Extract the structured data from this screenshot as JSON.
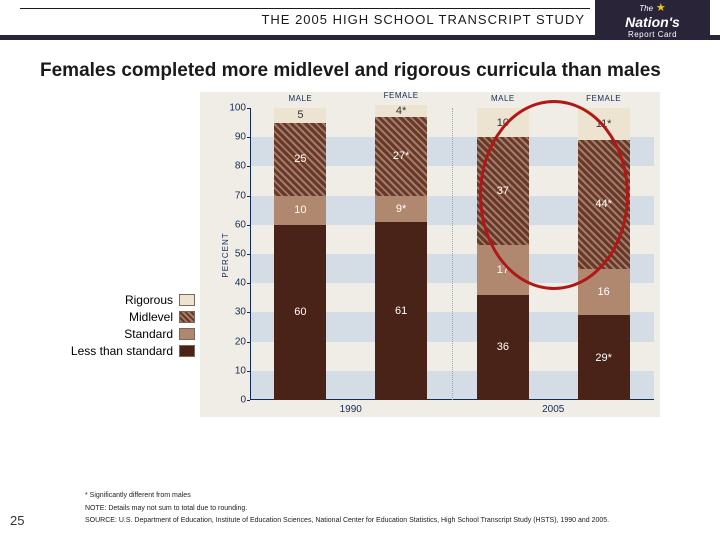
{
  "header": {
    "study_title": "THE 2005 HIGH SCHOOL TRANSCRIPT STUDY"
  },
  "logo": {
    "line1": "The",
    "line2": "Nation's",
    "line3": "Report Card"
  },
  "title": "Females completed more midlevel and rigorous curricula than males",
  "chart": {
    "type": "stacked-bar",
    "y": {
      "label": "PERCENT",
      "min": 0,
      "max": 100,
      "step": 10
    },
    "series_order": [
      "less_than_standard",
      "standard",
      "midlevel",
      "rigorous"
    ],
    "colors": {
      "less_than_standard": "#4a2318",
      "standard": "#b08870",
      "midlevel": "#6a3824",
      "rigorous": "#ece3d0",
      "text_on_dark": "#ffffff",
      "text_on_light": "#333333",
      "stripe": "#d4dde6",
      "panel_bg": "#f0ede6",
      "axis": "#132c57",
      "highlight_ring": "#b01818"
    },
    "groups": [
      {
        "year": "1990",
        "columns": [
          {
            "label": "MALE",
            "values": {
              "less_than_standard": 60,
              "standard": 10,
              "midlevel": 25,
              "rigorous": 5
            },
            "labels": {
              "less_than_standard": "60",
              "standard": "10",
              "midlevel": "25",
              "rigorous": "5"
            }
          },
          {
            "label": "FEMALE",
            "values": {
              "less_than_standard": 61,
              "standard": 9,
              "midlevel": 27,
              "rigorous": 4
            },
            "labels": {
              "less_than_standard": "61",
              "standard": "9*",
              "midlevel": "27*",
              "rigorous": "4*"
            }
          }
        ]
      },
      {
        "year": "2005",
        "highlight": true,
        "columns": [
          {
            "label": "MALE",
            "values": {
              "less_than_standard": 36,
              "standard": 17,
              "midlevel": 37,
              "rigorous": 10
            },
            "labels": {
              "less_than_standard": "36",
              "standard": "17",
              "midlevel": "37",
              "rigorous": "10"
            }
          },
          {
            "label": "FEMALE",
            "values": {
              "less_than_standard": 29,
              "standard": 16,
              "midlevel": 44,
              "rigorous": 11
            },
            "labels": {
              "less_than_standard": "29*",
              "standard": "16",
              "midlevel": "44*",
              "rigorous": "11*"
            }
          }
        ]
      }
    ]
  },
  "legend": {
    "rigorous": "Rigorous",
    "midlevel": "Midlevel",
    "standard": "Standard",
    "less_than_standard": "Less than standard"
  },
  "footnotes": {
    "sig": "* Significantly different from males",
    "note": "NOTE: Details may not sum to total due to rounding.",
    "source": "SOURCE: U.S. Department of Education, Institute of Education Sciences, National Center for Education Statistics, High School Transcript Study (HSTS), 1990 and 2005."
  },
  "page_number": "25"
}
